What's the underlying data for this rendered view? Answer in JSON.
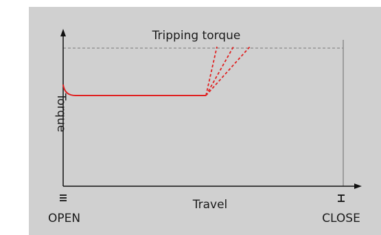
{
  "diagram": {
    "y_axis_label": "Torque",
    "x_axis_label": "Travel",
    "tripping_label": "Tripping torque",
    "open_label": "OPEN",
    "close_label": "CLOSE",
    "open_icon": "open-position-symbol",
    "close_icon": "close-position-symbol",
    "colors": {
      "background": "#d0d0d0",
      "torque_curve": "#e02020",
      "tripping_line": "#777777",
      "axes": "#111111",
      "close_limit_line": "#8a8a8a"
    }
  }
}
